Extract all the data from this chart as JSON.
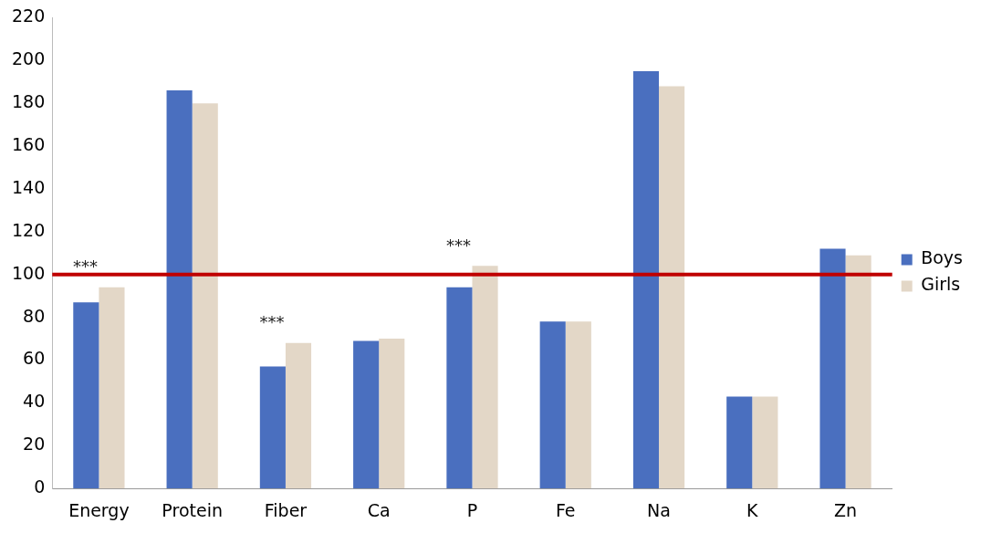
{
  "chart_data": {
    "type": "bar",
    "categories": [
      "Energy",
      "Protein",
      "Fiber",
      "Ca",
      "P",
      "Fe",
      "Na",
      "K",
      "Zn"
    ],
    "series": [
      {
        "name": "Boys",
        "color": "#4a6fbf",
        "values": [
          87,
          186,
          57,
          69,
          94,
          78,
          195,
          43,
          112
        ]
      },
      {
        "name": "Girls",
        "color": "#e3d7c7",
        "values": [
          94,
          180,
          68,
          70,
          104,
          78,
          188,
          43,
          109
        ]
      }
    ],
    "ylim": [
      0,
      220
    ],
    "yticks": [
      0,
      20,
      40,
      60,
      80,
      100,
      120,
      140,
      160,
      180,
      200,
      220
    ],
    "grid": false,
    "legend": "right",
    "ref_lines": [
      {
        "axis": "y",
        "value": 100,
        "color": "#c00000"
      }
    ],
    "annotations": [
      {
        "text": "***",
        "x": "Energy",
        "y": 94
      },
      {
        "text": "***",
        "x": "Fiber",
        "y": 68
      },
      {
        "text": "***",
        "x": "P",
        "y": 104
      }
    ]
  }
}
